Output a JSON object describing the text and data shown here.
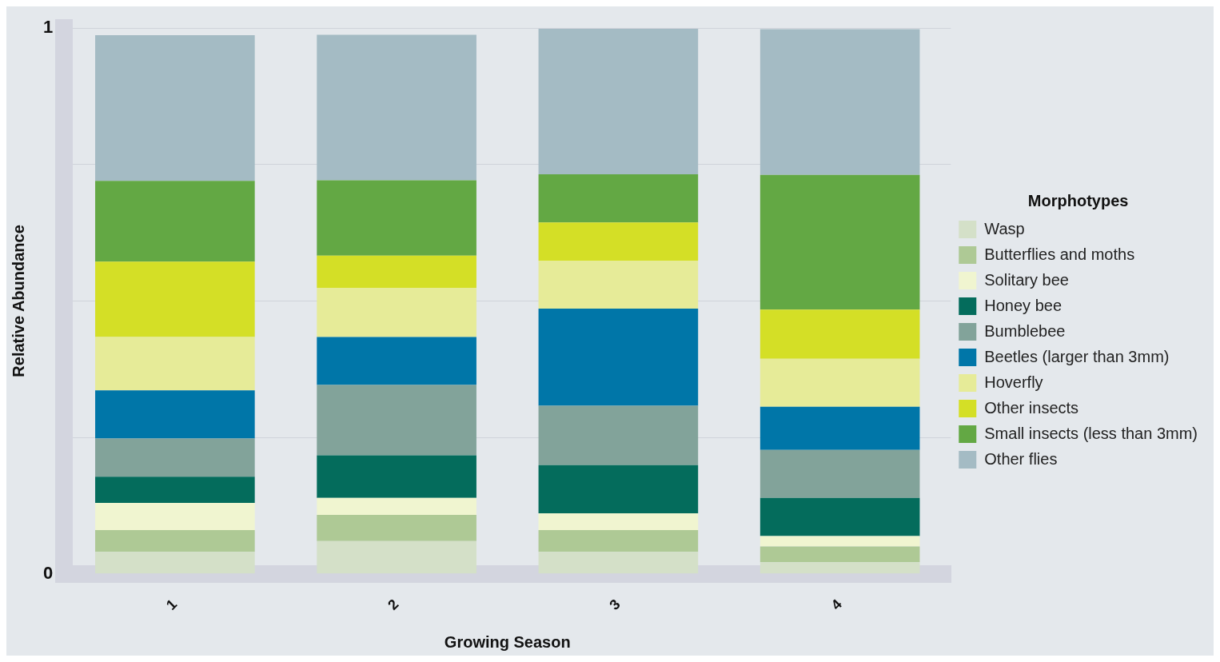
{
  "chart_data": {
    "type": "bar",
    "stacked": true,
    "xlabel": "Growing Season",
    "ylabel": "Relative Abundance",
    "legend_title": "Morphotypes",
    "legend": "right",
    "grid": "y",
    "categories": [
      "1",
      "2",
      "3",
      "4"
    ],
    "ylim": [
      0,
      1
    ],
    "yticks": [
      0,
      {
        "value": 0.25,
        "label": null
      },
      {
        "value": 0.5,
        "label": null
      },
      {
        "value": 0.75,
        "label": null
      },
      1
    ],
    "series": [
      {
        "name": "Wasp",
        "color": "#d4e0c8",
        "values": [
          0.04,
          0.06,
          0.04,
          0.021
        ]
      },
      {
        "name": "Butterflies and moths",
        "color": "#aec995",
        "values": [
          0.04,
          0.048,
          0.04,
          0.029
        ]
      },
      {
        "name": "Solitary bee",
        "color": "#f0f5d0",
        "values": [
          0.05,
          0.031,
          0.031,
          0.019
        ]
      },
      {
        "name": "Honey bee",
        "color": "#046c5c",
        "values": [
          0.048,
          0.078,
          0.088,
          0.07
        ]
      },
      {
        "name": "Bumblebee",
        "color": "#82a39a",
        "values": [
          0.07,
          0.129,
          0.109,
          0.088
        ]
      },
      {
        "name": "Beetles (larger than 3mm)",
        "color": "#0076a8",
        "values": [
          0.088,
          0.088,
          0.178,
          0.079
        ]
      },
      {
        "name": "Hoverfly",
        "color": "#e6eb98",
        "values": [
          0.098,
          0.09,
          0.088,
          0.088
        ]
      },
      {
        "name": "Other insects",
        "color": "#d4df26",
        "values": [
          0.138,
          0.059,
          0.07,
          0.09
        ]
      },
      {
        "name": "Small insects (less than 3mm)",
        "color": "#63a844",
        "values": [
          0.148,
          0.138,
          0.088,
          0.247
        ]
      },
      {
        "name": "Other flies",
        "color": "#a4bbc4",
        "values": [
          0.267,
          0.267,
          0.267,
          0.267
        ]
      }
    ]
  }
}
